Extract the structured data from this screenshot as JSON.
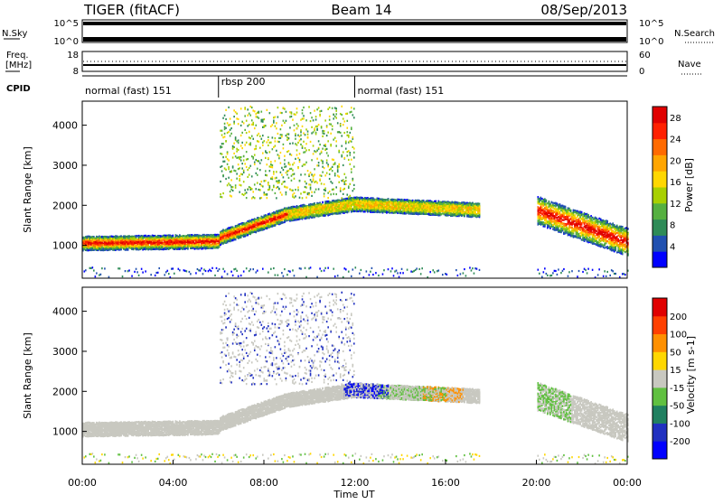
{
  "header": {
    "station": "TIGER (fitACF)",
    "beam": "Beam 14",
    "date": "08/Sep/2013"
  },
  "nsky_panel": {
    "left_label": "N.Sky",
    "right_label": "N.Search",
    "left_ticks": [
      "10^5",
      "10^0"
    ],
    "right_ticks": [
      "10^5",
      "10^0"
    ]
  },
  "freq_panel": {
    "left_label_line1": "Freq.",
    "left_label_line2": "[MHz]",
    "right_label": "Nave",
    "left_ticks": [
      "18",
      "8"
    ],
    "right_ticks": [
      "60",
      "0"
    ]
  },
  "cpid": {
    "label": "CPID",
    "segments": [
      {
        "name": "normal (fast) 151",
        "start_hour": 0,
        "end_hour": 6
      },
      {
        "name": "rbsp 200",
        "start_hour": 6,
        "end_hour": 12
      },
      {
        "name": "normal (fast) 151",
        "start_hour": 12,
        "end_hour": 24
      }
    ]
  },
  "time_axis": {
    "label": "Time UT",
    "ticks": [
      "00:00",
      "04:00",
      "08:00",
      "12:00",
      "16:00",
      "20:00",
      "00:00"
    ]
  },
  "chart_data": [
    {
      "type": "heatmap",
      "name": "power",
      "ylabel": "Slant Range [km]",
      "xlabel": "Time UT",
      "xlim": [
        "00:00",
        "24:00"
      ],
      "ylim": [
        180,
        4600
      ],
      "y_ticks": [
        1000,
        2000,
        3000,
        4000
      ],
      "colorbar": {
        "label": "Power [dB]",
        "ticks": [
          "4",
          "8",
          "12",
          "16",
          "20",
          "24",
          "28"
        ],
        "min": 0,
        "max": 30,
        "colors": [
          "#0000ff",
          "#2050b0",
          "#2e8b57",
          "#55b040",
          "#a8d000",
          "#ffd700",
          "#ffa500",
          "#ff6a00",
          "#ff2000",
          "#e00000"
        ]
      },
      "features": [
        {
          "desc": "main band",
          "hours": [
            0,
            6,
            9,
            12,
            17.5
          ],
          "range_km": [
            1150,
            1200,
            1800,
            2050,
            1900
          ]
        },
        {
          "desc": "evening band",
          "hours": [
            20,
            24
          ],
          "range_km": [
            1900,
            1100
          ]
        }
      ]
    },
    {
      "type": "heatmap",
      "name": "velocity",
      "ylabel": "Slant Range [km]",
      "xlabel": "Time UT",
      "xlim": [
        "00:00",
        "24:00"
      ],
      "ylim": [
        180,
        4600
      ],
      "y_ticks": [
        1000,
        2000,
        3000,
        4000
      ],
      "colorbar": {
        "label": "Velocity [m s-1]",
        "ticks": [
          "200",
          "100",
          "50",
          "15",
          "-15",
          "-50",
          "-100",
          "-200"
        ],
        "colors": [
          "#0000ff",
          "#2030c0",
          "#208060",
          "#60c040",
          "#c8c8c0",
          "#ffd700",
          "#ff9000",
          "#ff4000",
          "#e00000"
        ]
      }
    }
  ]
}
